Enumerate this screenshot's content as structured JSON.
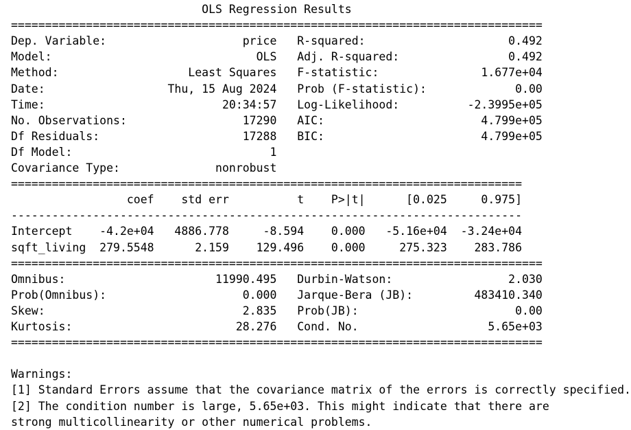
{
  "title": "OLS Regression Results",
  "top_table": {
    "left": [
      {
        "label": "Dep. Variable:",
        "value": "price"
      },
      {
        "label": "Model:",
        "value": "OLS"
      },
      {
        "label": "Method:",
        "value": "Least Squares"
      },
      {
        "label": "Date:",
        "value": "Thu, 15 Aug 2024"
      },
      {
        "label": "Time:",
        "value": "20:34:57"
      },
      {
        "label": "No. Observations:",
        "value": "17290"
      },
      {
        "label": "Df Residuals:",
        "value": "17288"
      },
      {
        "label": "Df Model:",
        "value": "1"
      },
      {
        "label": "Covariance Type:",
        "value": "nonrobust"
      }
    ],
    "right": [
      {
        "label": "R-squared:",
        "value": "0.492"
      },
      {
        "label": "Adj. R-squared:",
        "value": "0.492"
      },
      {
        "label": "F-statistic:",
        "value": "1.677e+04"
      },
      {
        "label": "Prob (F-statistic):",
        "value": "0.00"
      },
      {
        "label": "Log-Likelihood:",
        "value": "-2.3995e+05"
      },
      {
        "label": "AIC:",
        "value": "4.799e+05"
      },
      {
        "label": "BIC:",
        "value": "4.799e+05"
      }
    ]
  },
  "coef_table": {
    "headers": [
      "coef",
      "std err",
      "t",
      "P>|t|",
      "[0.025",
      "0.975]"
    ],
    "rows": [
      {
        "name": "Intercept",
        "values": [
          "-4.2e+04",
          "4886.778",
          "-8.594",
          "0.000",
          "-5.16e+04",
          "-3.24e+04"
        ]
      },
      {
        "name": "sqft_living",
        "values": [
          "279.5548",
          "2.159",
          "129.496",
          "0.000",
          "275.323",
          "283.786"
        ]
      }
    ]
  },
  "diag_table": {
    "left": [
      {
        "label": "Omnibus:",
        "value": "11990.495"
      },
      {
        "label": "Prob(Omnibus):",
        "value": "0.000"
      },
      {
        "label": "Skew:",
        "value": "2.835"
      },
      {
        "label": "Kurtosis:",
        "value": "28.276"
      }
    ],
    "right": [
      {
        "label": "Durbin-Watson:",
        "value": "2.030"
      },
      {
        "label": "Jarque-Bera (JB):",
        "value": "483410.340"
      },
      {
        "label": "Prob(JB):",
        "value": "0.00"
      },
      {
        "label": "Cond. No.",
        "value": "5.65e+03"
      }
    ]
  },
  "warnings": {
    "heading": "Warnings:",
    "lines": [
      "[1] Standard Errors assume that the covariance matrix of the errors is correctly specified.",
      "[2] The condition number is large, 5.65e+03. This might indicate that there are",
      "strong multicollinearity or other numerical problems."
    ]
  }
}
